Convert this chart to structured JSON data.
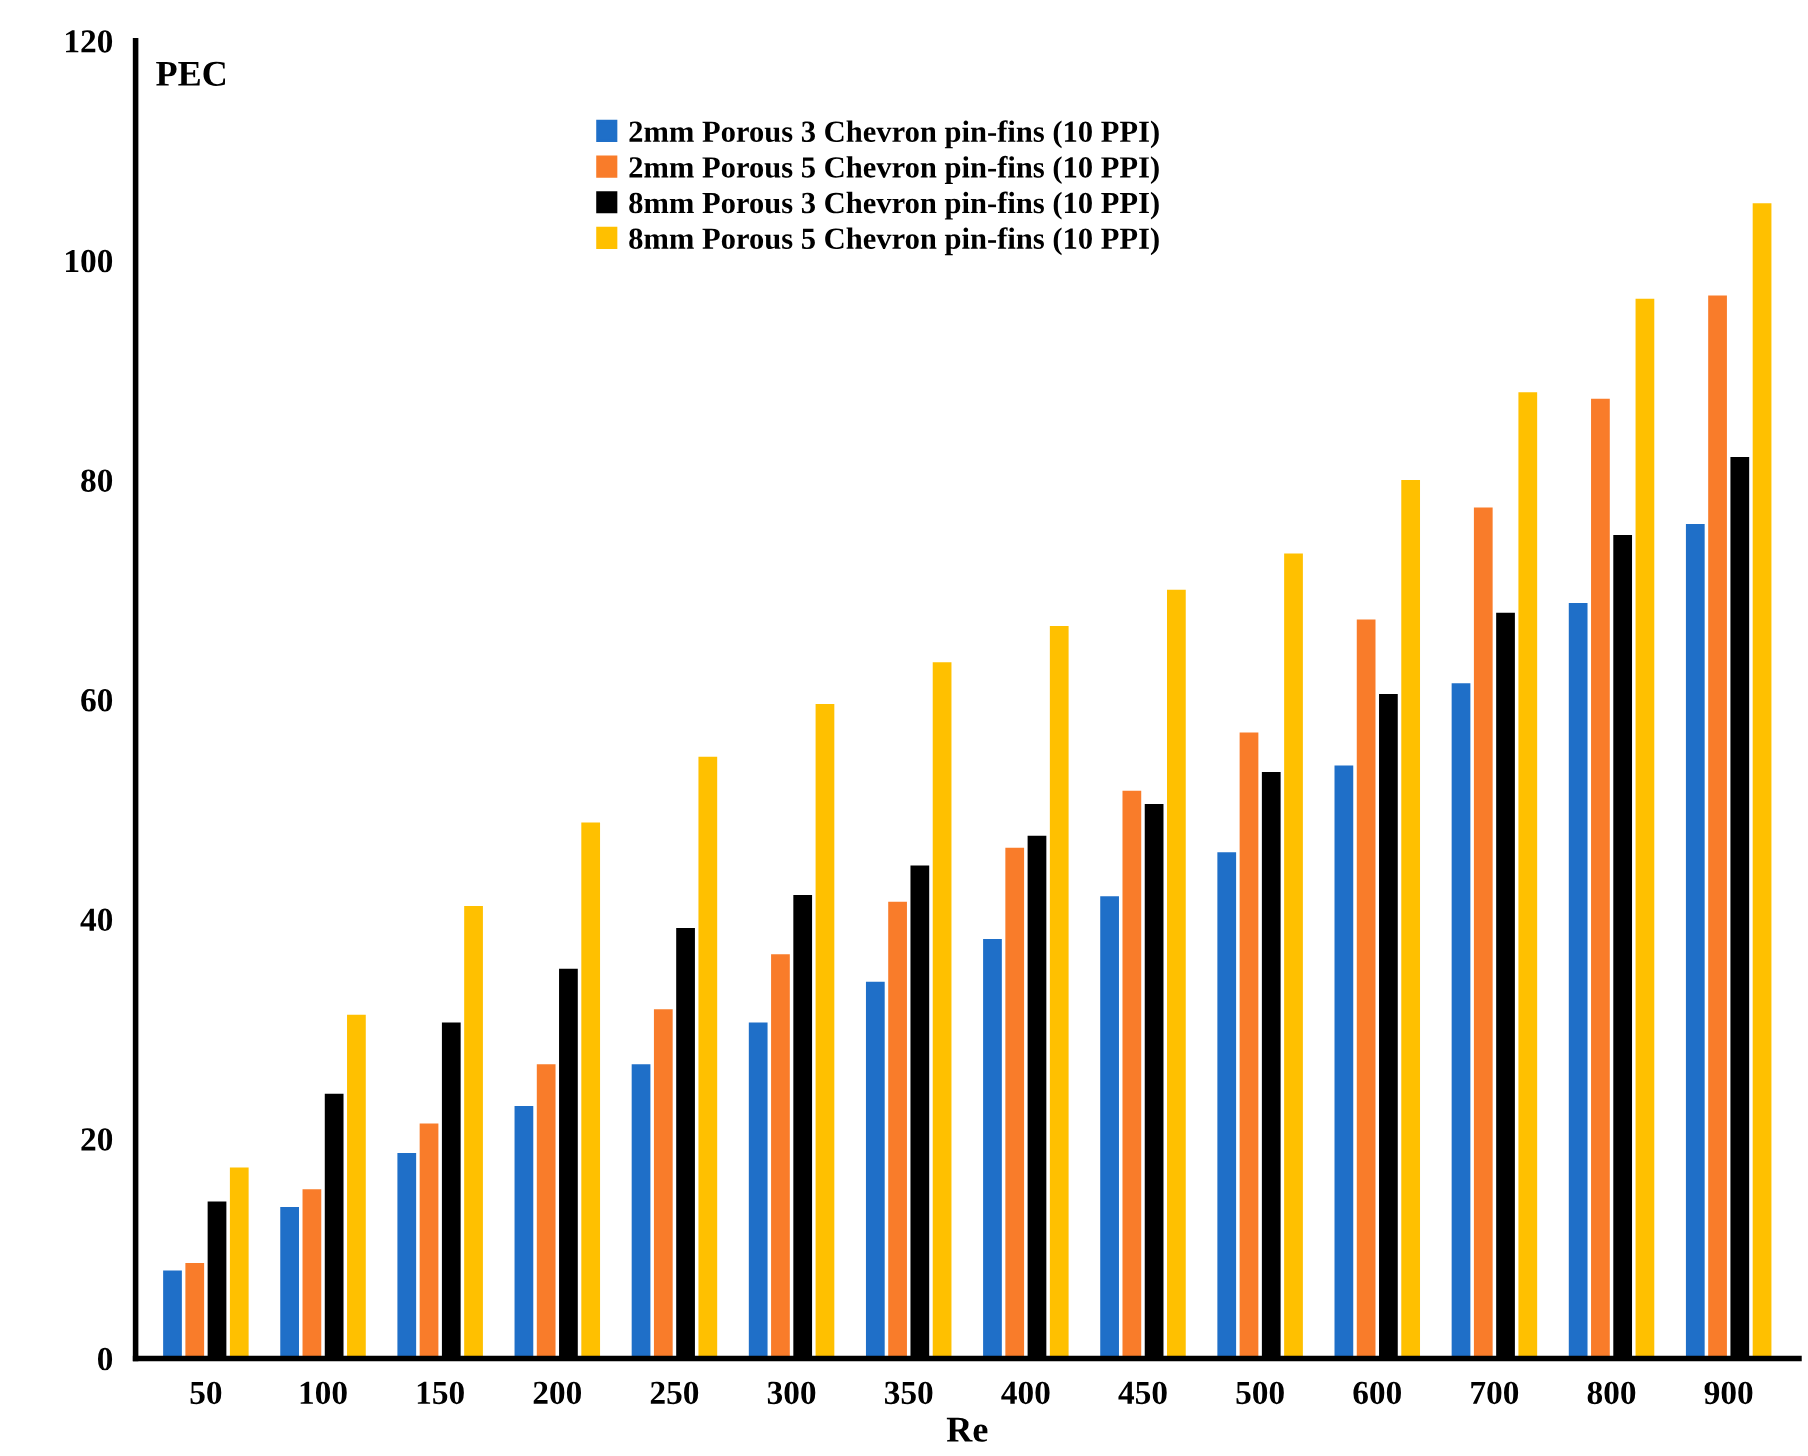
{
  "chart_data": {
    "type": "bar",
    "xlabel": "Re",
    "ylabel": "PEC",
    "categories": [
      "50",
      "100",
      "150",
      "200",
      "250",
      "300",
      "350",
      "400",
      "450",
      "500",
      "600",
      "700",
      "800",
      "900"
    ],
    "series": [
      {
        "name": "2mm Porous 3 Chevron pin-fins (10 PPI)",
        "color": "#1f6fc8",
        "values": [
          8.0,
          13.8,
          18.7,
          23.0,
          26.8,
          30.6,
          34.3,
          38.2,
          42.1,
          46.1,
          54.0,
          61.5,
          68.8,
          76.0
        ]
      },
      {
        "name": "2mm Porous 5 Chevron pin-fins (10 PPI)",
        "color": "#f97c2a",
        "values": [
          8.7,
          15.4,
          21.4,
          26.8,
          31.8,
          36.8,
          41.6,
          46.5,
          51.7,
          57.0,
          67.3,
          77.5,
          87.4,
          96.8
        ]
      },
      {
        "name": "8mm Porous 3 Chevron pin-fins (10 PPI)",
        "color": "#000000",
        "values": [
          14.3,
          24.1,
          30.6,
          35.5,
          39.2,
          42.2,
          44.9,
          47.6,
          50.5,
          53.4,
          60.5,
          67.9,
          75.0,
          82.1
        ]
      },
      {
        "name": "8mm Porous 5 Chevron pin-fins (10 PPI)",
        "color": "#ffc000",
        "values": [
          17.4,
          31.3,
          41.2,
          48.8,
          54.8,
          59.6,
          63.4,
          66.7,
          70.0,
          73.3,
          80.0,
          88.0,
          96.5,
          105.2
        ]
      }
    ],
    "ylim": [
      0,
      120
    ],
    "yticks": [
      0,
      20,
      40,
      60,
      80,
      100,
      120
    ],
    "grid": false,
    "legend": "top"
  }
}
